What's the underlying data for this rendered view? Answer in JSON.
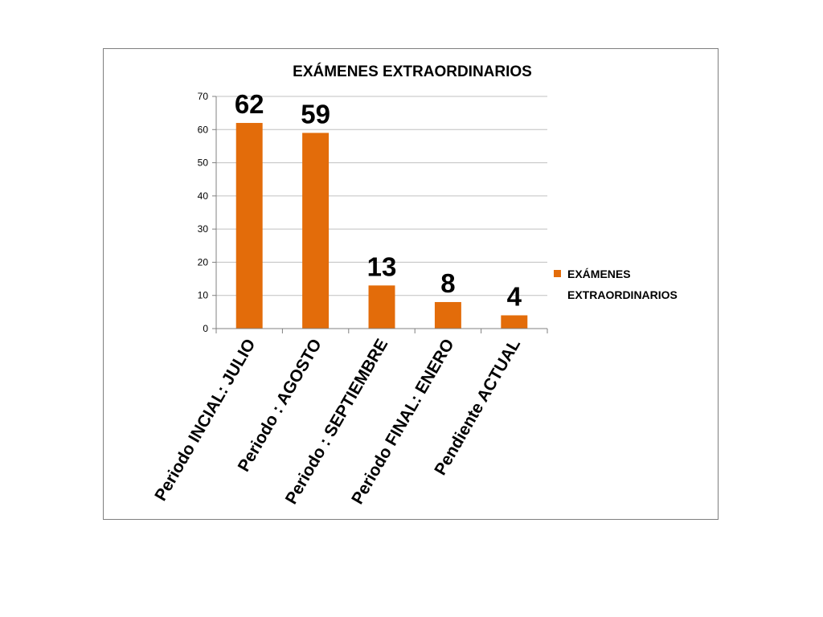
{
  "chart_data": {
    "type": "bar",
    "title": "EXÁMENES EXTRAORDINARIOS",
    "categories": [
      "Periodo INCIAL: JULIO",
      "Periodo : AGOSTO",
      "Periodo : SEPTIEMBRE",
      "Periodo FINAL: ENERO",
      "Pendiente ACTUAL"
    ],
    "series": [
      {
        "name": "EXÁMENES EXTRAORDINARIOS",
        "values": [
          62,
          59,
          13,
          8,
          4
        ],
        "color": "#e36c0a"
      }
    ],
    "data_labels": [
      "62",
      "59",
      "13",
      "8",
      "4"
    ],
    "y_ticks": [
      "0",
      "10",
      "20",
      "30",
      "40",
      "50",
      "60",
      "70"
    ],
    "ylim": [
      0,
      70
    ],
    "legend": {
      "position": "right",
      "lines": [
        "EXÁMENES",
        "EXTRAORDINARIOS"
      ]
    },
    "grid": true,
    "gridline_color": "#c0c0c0",
    "axis_color": "#808080"
  }
}
